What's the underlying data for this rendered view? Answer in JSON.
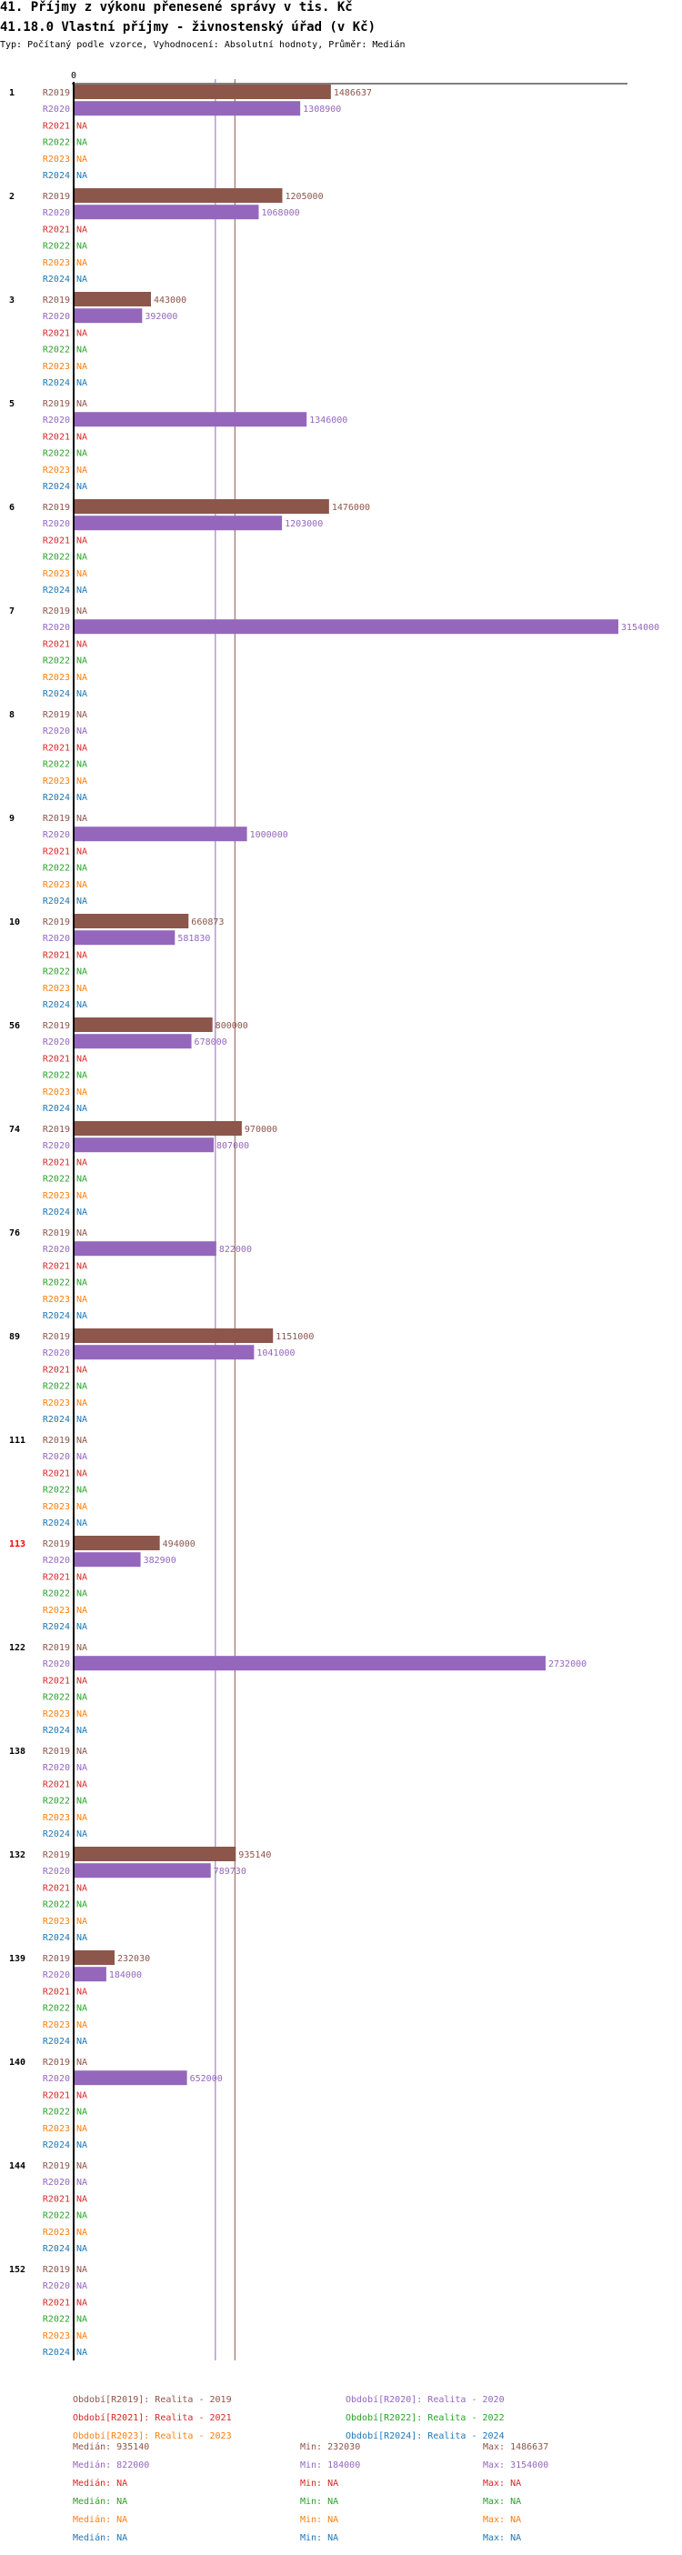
{
  "title": "41. Příjmy z výkonu přenesené správy v tis. Kč",
  "subtitle": "41.18.0 Vlastní příjmy - živnostenský úřad (v Kč)",
  "description": "Typ: Počítaný podle vzorce, Vyhodnocení: Absolutní hodnoty, Průměr: Medián",
  "chart_data": {
    "type": "bar",
    "orientation": "horizontal",
    "xlim": [
      0,
      3154000
    ],
    "x_tick_labels": [
      "0"
    ],
    "series_names": [
      "R2019",
      "R2020",
      "R2021",
      "R2022",
      "R2023",
      "R2024"
    ],
    "colors": {
      "R2019": "#8c564b",
      "R2020": "#9467bd",
      "R2021": "#d62728",
      "R2022": "#2ca02c",
      "R2023": "#ff7f0e",
      "R2024": "#1f77b4"
    },
    "na_label": "NA",
    "groups": [
      {
        "label": "1",
        "values": [
          1486637,
          1308900,
          null,
          null,
          null,
          null
        ]
      },
      {
        "label": "2",
        "values": [
          1205000,
          1068000,
          null,
          null,
          null,
          null
        ]
      },
      {
        "label": "3",
        "values": [
          443000,
          392000,
          null,
          null,
          null,
          null
        ]
      },
      {
        "label": "5",
        "values": [
          null,
          1346000,
          null,
          null,
          null,
          null
        ]
      },
      {
        "label": "6",
        "values": [
          1476000,
          1203000,
          null,
          null,
          null,
          null
        ]
      },
      {
        "label": "7",
        "values": [
          null,
          3154000,
          null,
          null,
          null,
          null
        ]
      },
      {
        "label": "8",
        "values": [
          null,
          null,
          null,
          null,
          null,
          null
        ]
      },
      {
        "label": "9",
        "values": [
          null,
          1000000,
          null,
          null,
          null,
          null
        ]
      },
      {
        "label": "10",
        "values": [
          660873,
          581830,
          null,
          null,
          null,
          null
        ]
      },
      {
        "label": "56",
        "values": [
          800000,
          678000,
          null,
          null,
          null,
          null
        ]
      },
      {
        "label": "74",
        "values": [
          970000,
          807000,
          null,
          null,
          null,
          null
        ]
      },
      {
        "label": "76",
        "values": [
          null,
          822000,
          null,
          null,
          null,
          null
        ]
      },
      {
        "label": "89",
        "values": [
          1151000,
          1041000,
          null,
          null,
          null,
          null
        ]
      },
      {
        "label": "111",
        "values": [
          null,
          null,
          null,
          null,
          null,
          null
        ]
      },
      {
        "label": "113",
        "values": [
          494000,
          382900,
          null,
          null,
          null,
          null
        ],
        "highlight": "#ff0000"
      },
      {
        "label": "122",
        "values": [
          null,
          2732000,
          null,
          null,
          null,
          null
        ]
      },
      {
        "label": "138",
        "values": [
          null,
          null,
          null,
          null,
          null,
          null
        ]
      },
      {
        "label": "132",
        "values": [
          935140,
          789730,
          null,
          null,
          null,
          null
        ]
      },
      {
        "label": "139",
        "values": [
          232030,
          184000,
          null,
          null,
          null,
          null
        ]
      },
      {
        "label": "140",
        "values": [
          null,
          652000,
          null,
          null,
          null,
          null
        ]
      },
      {
        "label": "144",
        "values": [
          null,
          null,
          null,
          null,
          null,
          null
        ]
      },
      {
        "label": "152",
        "values": [
          null,
          null,
          null,
          null,
          null,
          null
        ]
      }
    ],
    "median_lines": [
      {
        "series": "R2020",
        "value": 822000
      },
      {
        "series": "R2019",
        "value": 935140
      }
    ],
    "legend": [
      "Období[R2019]: Realita - 2019",
      "Období[R2020]: Realita - 2020",
      "Období[R2021]: Realita - 2021",
      "Období[R2022]: Realita - 2022",
      "Období[R2023]: Realita - 2023",
      "Období[R2024]: Realita - 2024"
    ],
    "stats": [
      {
        "median": "Medián: 935140",
        "min": "Min: 232030",
        "max": "Max: 1486637"
      },
      {
        "median": "Medián: 822000",
        "min": "Min: 184000",
        "max": "Max: 3154000"
      },
      {
        "median": "Medián: NA",
        "min": "Min: NA",
        "max": "Max: NA"
      },
      {
        "median": "Medián: NA",
        "min": "Min: NA",
        "max": "Max: NA"
      },
      {
        "median": "Medián: NA",
        "min": "Min: NA",
        "max": "Max: NA"
      },
      {
        "median": "Medián: NA",
        "min": "Min: NA",
        "max": "Max: NA"
      }
    ]
  }
}
